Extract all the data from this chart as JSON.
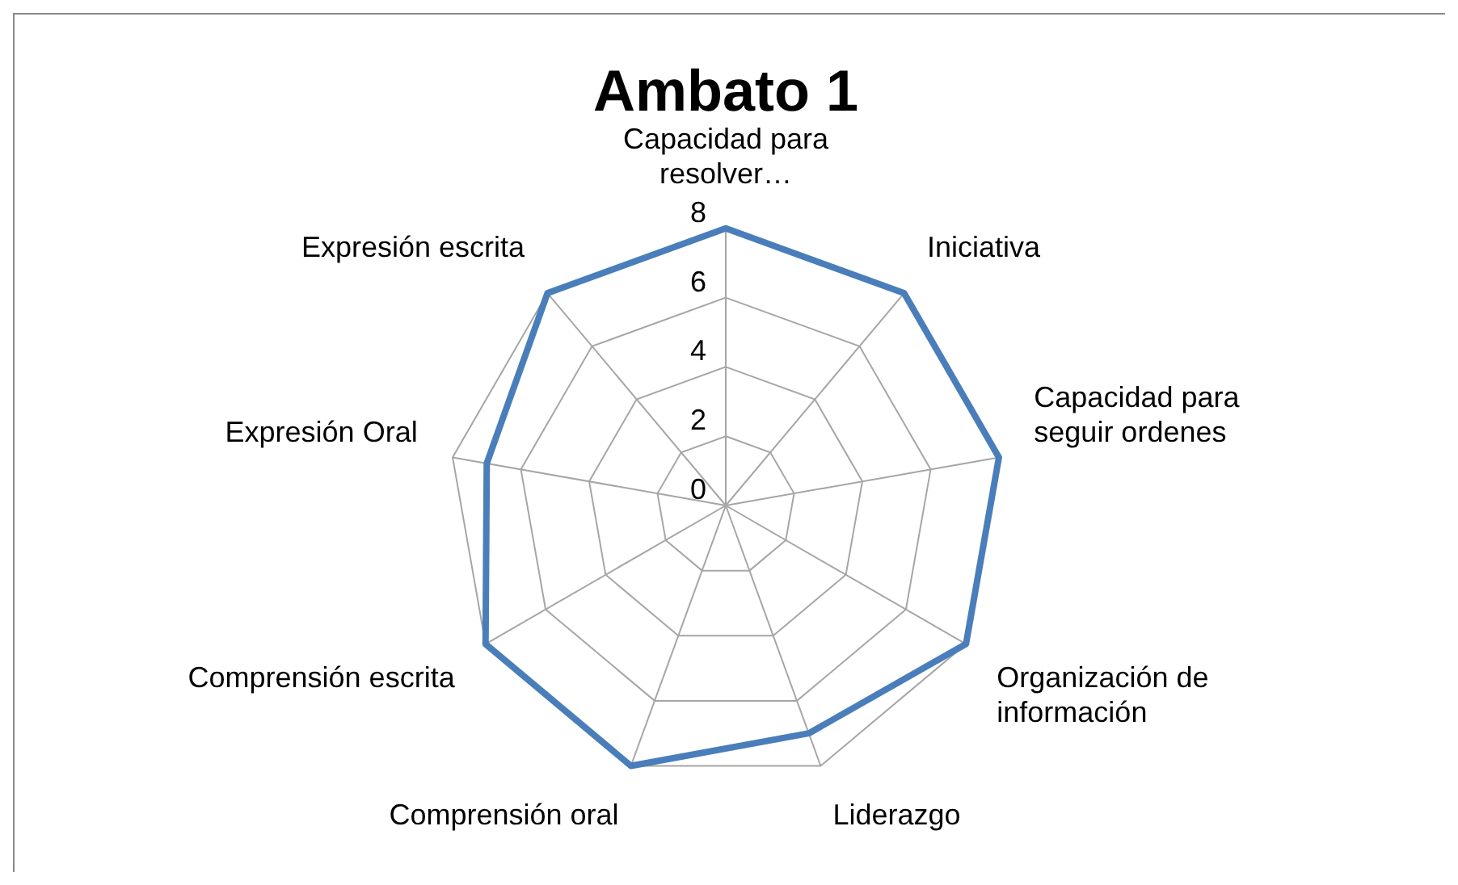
{
  "chart_data": {
    "type": "radar",
    "title": "Ambato 1",
    "categories": [
      "Capacidad para resolver…",
      "Iniciativa",
      "Capacidad para seguir ordenes",
      "Organización de información",
      "Liderazgo",
      "Comprensión oral",
      "Comprensión escrita",
      "Expresión Oral",
      "Expresión escrita"
    ],
    "series": [
      {
        "color": "#4a7ebb",
        "values": [
          8,
          8,
          8,
          8,
          7,
          8,
          8,
          7,
          8
        ]
      }
    ],
    "ylim": [
      0,
      8
    ],
    "yticks": [
      0,
      2,
      4,
      6,
      8
    ],
    "grid": true,
    "legend": false
  }
}
